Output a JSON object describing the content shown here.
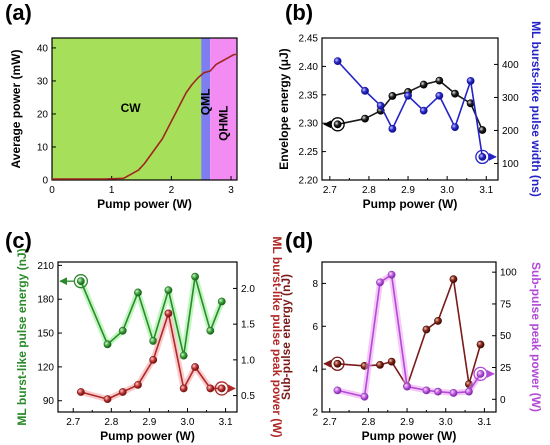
{
  "chart_data": [
    {
      "panel": "(a)",
      "type": "line",
      "xlabel": "Pump power (W)",
      "ylabel": "Average power (mW)",
      "xlim": [
        0,
        3.1
      ],
      "ylim": [
        0,
        43
      ],
      "xticks": [
        "0",
        "1",
        "2",
        "3"
      ],
      "yticks": [
        "0",
        "10",
        "20",
        "30",
        "40"
      ],
      "regions": [
        {
          "label": "CW",
          "x": [
            0,
            2.5
          ],
          "color": "#a6e05a"
        },
        {
          "label": "QML",
          "x": [
            2.5,
            2.65
          ],
          "color": "#7e7ef0"
        },
        {
          "label": "QHML",
          "x": [
            2.65,
            3.1
          ],
          "color": "#f28cf2"
        }
      ],
      "series": [
        {
          "color": "#a0261e",
          "x": [
            0,
            0.3,
            0.6,
            0.9,
            1.2,
            1.3,
            1.45,
            1.55,
            1.65,
            1.75,
            1.85,
            1.95,
            2.05,
            2.15,
            2.25,
            2.35,
            2.45,
            2.55,
            2.65,
            2.75,
            2.85,
            2.95,
            3.05,
            3.1
          ],
          "y": [
            0.3,
            0.3,
            0.3,
            0.3,
            0.5,
            1.5,
            3,
            5,
            7.5,
            10,
            12.5,
            16,
            19.5,
            23,
            26.5,
            29,
            31,
            32.5,
            33,
            35,
            36,
            37,
            38,
            38
          ]
        }
      ]
    },
    {
      "panel": "(b)",
      "type": "line",
      "xlabel": "Pump power (W)",
      "ylabel": "Envelope energy (μJ)",
      "ylabel_right": "ML bursts-like pulse width (ns)",
      "xlim": [
        2.68,
        3.13
      ],
      "ylim": [
        2.2,
        2.45
      ],
      "ylim_right": [
        50,
        480
      ],
      "xticks": [
        "2.7",
        "2.8",
        "2.9",
        "3.0",
        "3.1"
      ],
      "yticks": [
        "2.20",
        "2.25",
        "2.30",
        "2.35",
        "2.40",
        "2.45"
      ],
      "yticks_right": [
        "100",
        "200",
        "300",
        "400"
      ],
      "series": [
        {
          "axis": "left",
          "color": "#1a1a1a",
          "marker": "black",
          "x": [
            2.72,
            2.79,
            2.83,
            2.86,
            2.9,
            2.94,
            2.98,
            3.02,
            3.06,
            3.09
          ],
          "y": [
            2.298,
            2.308,
            2.322,
            2.348,
            2.355,
            2.368,
            2.375,
            2.352,
            2.335,
            2.288
          ]
        },
        {
          "axis": "right",
          "color": "#2323c8",
          "marker": "blue",
          "x": [
            2.72,
            2.79,
            2.83,
            2.86,
            2.9,
            2.94,
            2.98,
            3.02,
            3.06,
            3.09
          ],
          "y": [
            410,
            320,
            275,
            205,
            305,
            260,
            305,
            210,
            350,
            120
          ]
        }
      ]
    },
    {
      "panel": "(c)",
      "type": "line",
      "xlabel": "Pump power (W)",
      "ylabel": "ML burst-like pulse energy (nJ)",
      "ylabel_right": "ML burst-like pulse peak power (W)",
      "xlim": [
        2.66,
        3.13
      ],
      "ylim": [
        80,
        213
      ],
      "ylim_right": [
        0.27,
        2.37
      ],
      "xticks": [
        "2.7",
        "2.8",
        "2.9",
        "3.0",
        "3.1"
      ],
      "yticks": [
        "90",
        "120",
        "150",
        "180",
        "210"
      ],
      "yticks_right": [
        "0.5",
        "1.0",
        "1.5",
        "2.0"
      ],
      "series": [
        {
          "axis": "left",
          "color": "#2a8a2a",
          "marker": "green",
          "x": [
            2.72,
            2.79,
            2.83,
            2.87,
            2.91,
            2.95,
            2.99,
            3.02,
            3.06,
            3.09
          ],
          "y": [
            196,
            140,
            152,
            186,
            143,
            188,
            130,
            200,
            152,
            178
          ]
        },
        {
          "axis": "right",
          "color": "#b02828",
          "marker": "red",
          "x": [
            2.72,
            2.79,
            2.83,
            2.87,
            2.91,
            2.95,
            2.99,
            3.02,
            3.06,
            3.09
          ],
          "y": [
            0.55,
            0.45,
            0.55,
            0.65,
            1.0,
            1.65,
            0.6,
            0.9,
            0.6,
            0.6
          ]
        }
      ]
    },
    {
      "panel": "(d)",
      "type": "line",
      "xlabel": "Pump power (W)",
      "ylabel": "Sub-pulse energy (nJ)",
      "ylabel_right": "Sub-pulse peak power (W)",
      "xlim": [
        2.68,
        3.13
      ],
      "ylim": [
        2.0,
        9.0
      ],
      "ylim_right": [
        -10,
        108
      ],
      "xticks": [
        "2.7",
        "2.8",
        "2.9",
        "3.0",
        "3.1"
      ],
      "yticks": [
        "2",
        "4",
        "6",
        "8"
      ],
      "yticks_right": [
        "0",
        "25",
        "50",
        "75",
        "100"
      ],
      "series": [
        {
          "axis": "left",
          "color": "#7a1a1a",
          "marker": "darkred",
          "x": [
            2.72,
            2.79,
            2.83,
            2.86,
            2.9,
            2.95,
            2.98,
            3.02,
            3.06,
            3.09
          ],
          "y": [
            4.25,
            4.15,
            4.2,
            4.35,
            3.2,
            5.85,
            6.25,
            8.2,
            3.3,
            5.15
          ]
        },
        {
          "axis": "right",
          "color": "#b24ad8",
          "marker": "magenta",
          "x": [
            2.72,
            2.79,
            2.83,
            2.86,
            2.9,
            2.95,
            2.98,
            3.02,
            3.06,
            3.09
          ],
          "y": [
            7,
            2,
            92,
            98,
            10,
            7,
            6,
            5,
            6,
            20
          ]
        }
      ]
    }
  ]
}
